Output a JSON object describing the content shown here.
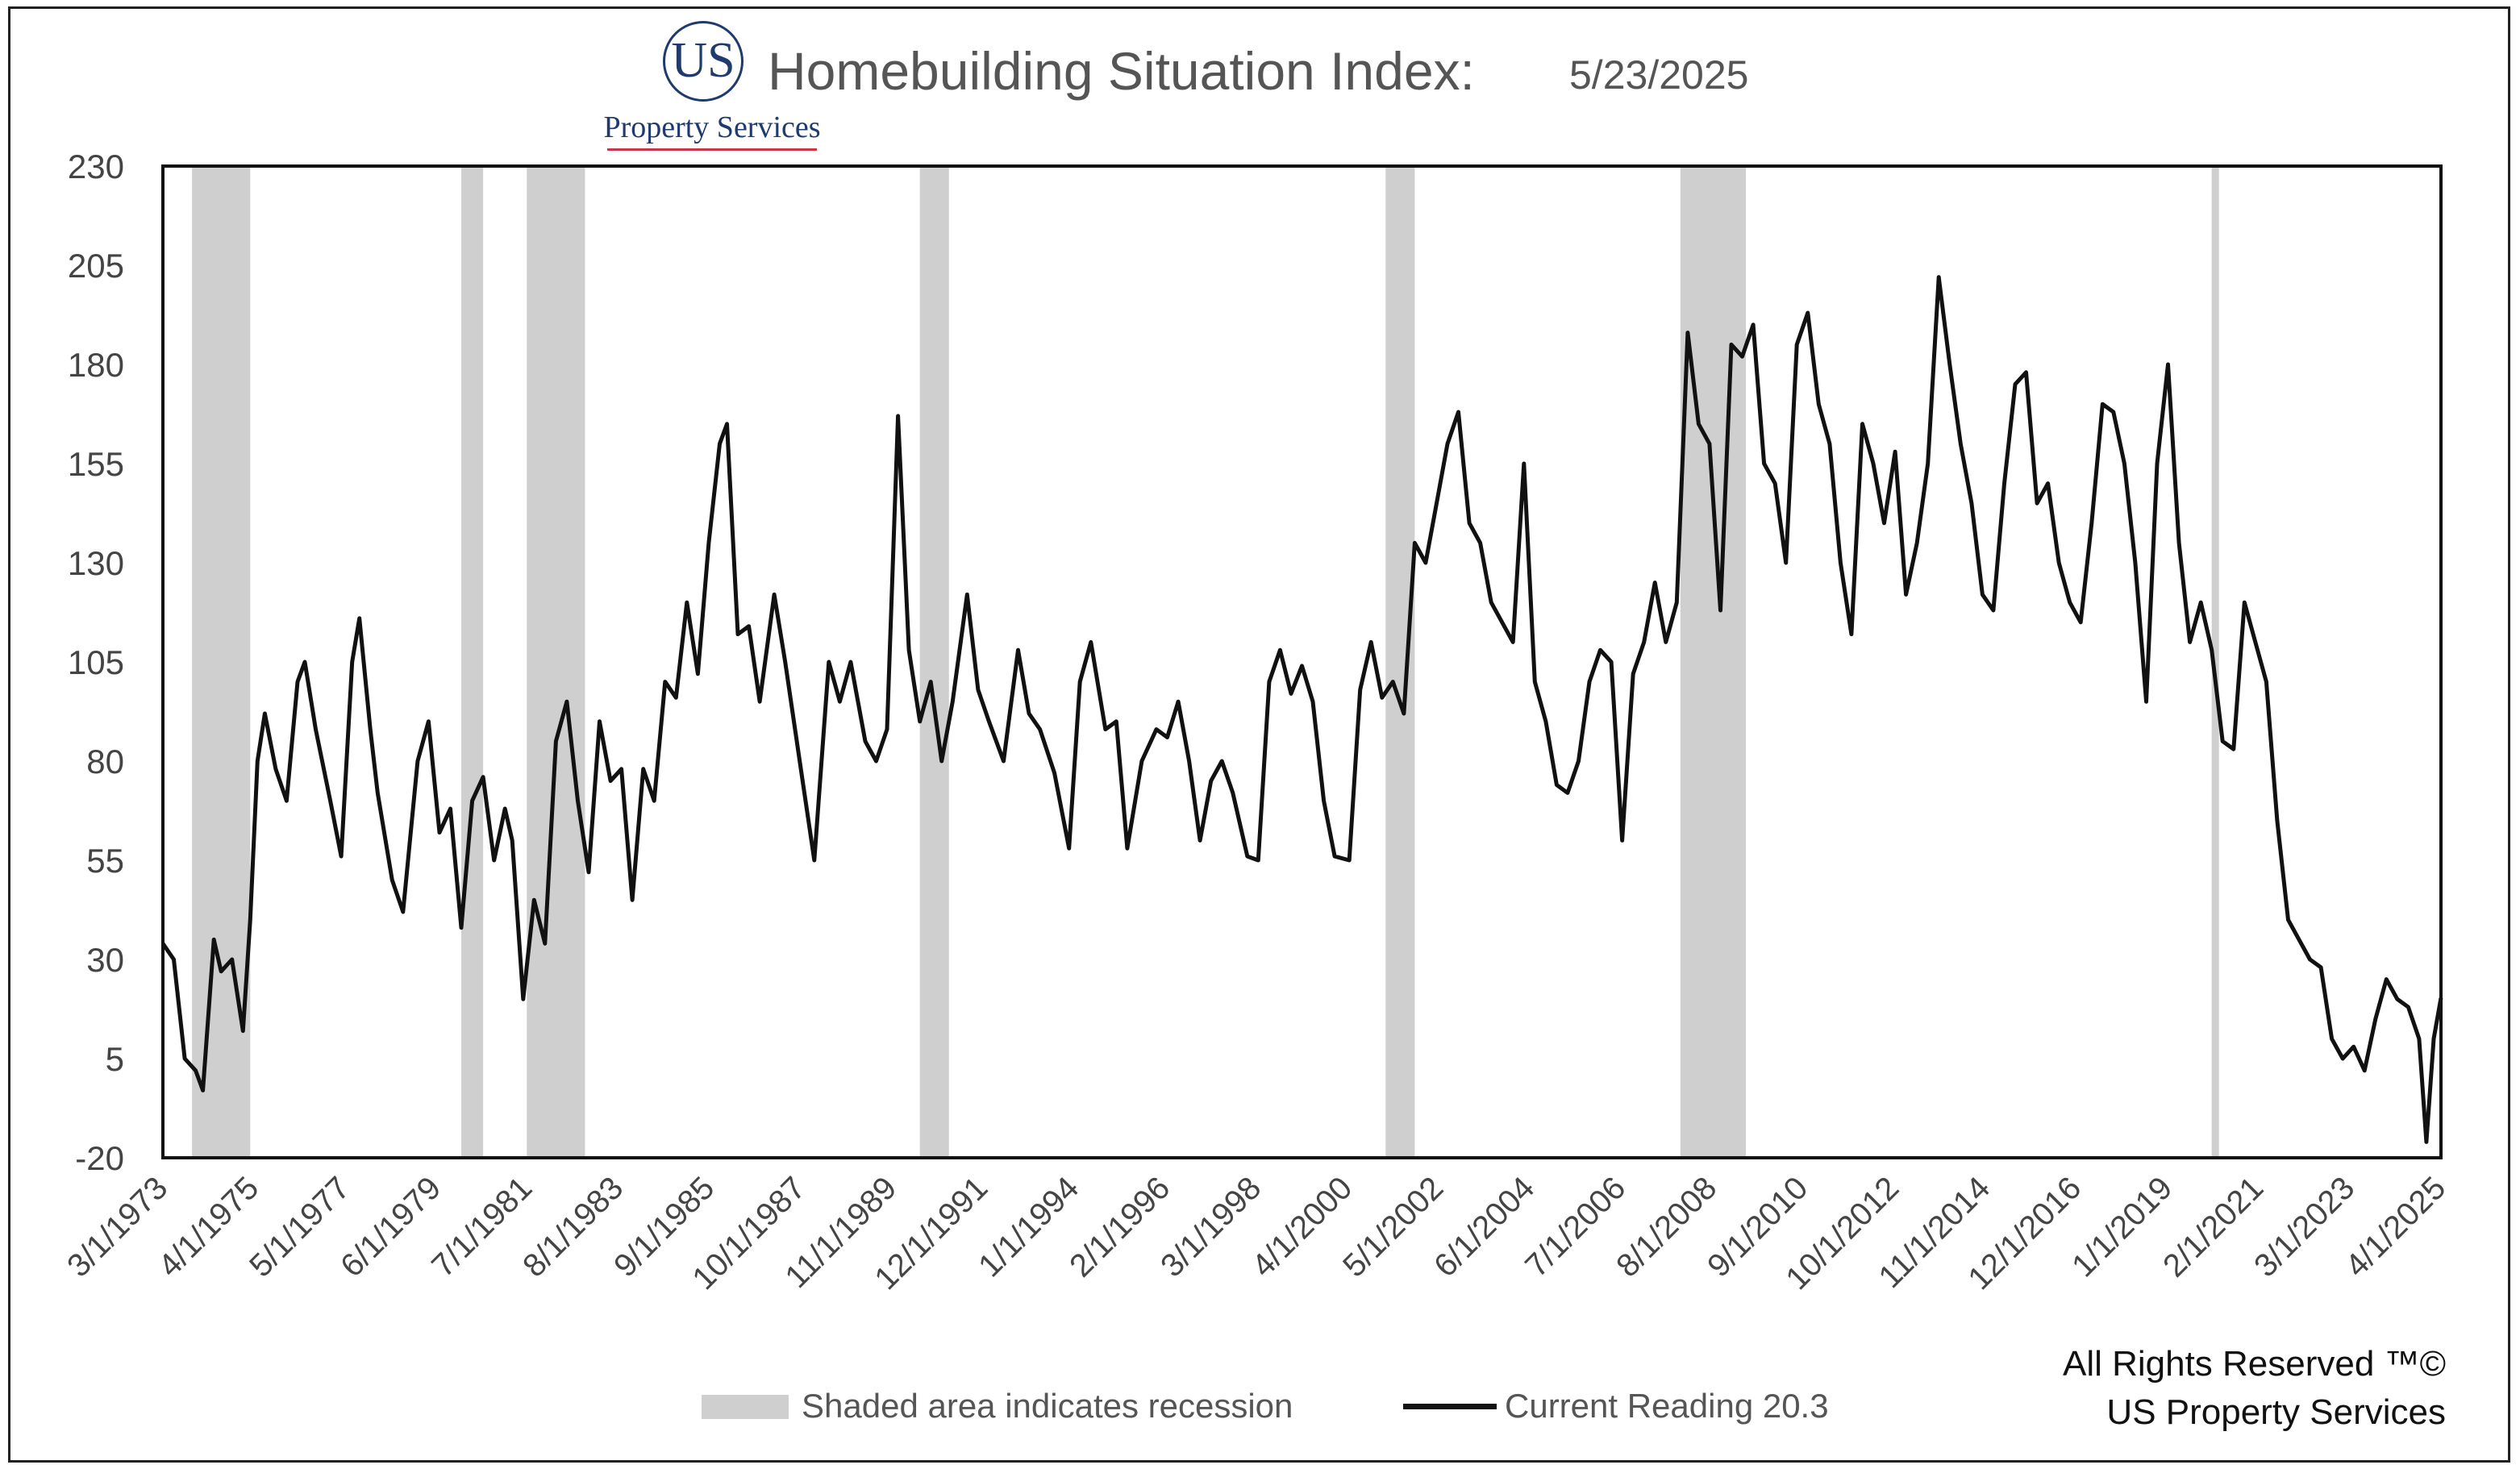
{
  "header": {
    "logo_text": "US",
    "logo_subtext": "Property Services",
    "title": "Homebuilding Situation Index:",
    "date": "5/23/2025"
  },
  "legend": {
    "recession_label": "Shaded area indicates recession",
    "current_label": "Current Reading 20.3"
  },
  "footer": {
    "rights_line1": "All Rights Reserved ™©",
    "rights_line2": "US Property Services"
  },
  "colors": {
    "line": "#111111",
    "recession": "#cfcfcf",
    "text": "#555555",
    "logo": "#1f3a6e"
  },
  "chart_data": {
    "type": "line",
    "title": "Homebuilding Situation Index:",
    "xlabel": "",
    "ylabel": "",
    "ylim": [
      -20,
      230
    ],
    "yticks": [
      230,
      205,
      180,
      155,
      130,
      105,
      80,
      55,
      30,
      5,
      -20
    ],
    "xlim": [
      "1973-03",
      "2025-05"
    ],
    "xtick_labels": [
      "3/1/1973",
      "4/1/1975",
      "5/1/1977",
      "6/1/1979",
      "7/1/1981",
      "8/1/1983",
      "9/1/1985",
      "10/1/1987",
      "11/1/1989",
      "12/1/1991",
      "1/1/1994",
      "2/1/1996",
      "3/1/1998",
      "4/1/2000",
      "5/1/2002",
      "6/1/2004",
      "7/1/2006",
      "8/1/2008",
      "9/1/2010",
      "10/1/2012",
      "11/1/2014",
      "12/1/2016",
      "1/1/2019",
      "2/1/2021",
      "3/1/2023",
      "4/1/2025"
    ],
    "grid": false,
    "legend_position": "bottom",
    "recessions": [
      [
        "1973-11",
        "1975-03"
      ],
      [
        "1980-01",
        "1980-07"
      ],
      [
        "1981-07",
        "1982-11"
      ],
      [
        "1990-07",
        "1991-03"
      ],
      [
        "2001-03",
        "2001-11"
      ],
      [
        "2007-12",
        "2009-06"
      ],
      [
        "2020-02",
        "2020-04"
      ]
    ],
    "series": [
      {
        "name": "Current Reading 20.3",
        "points": [
          [
            "1973-03",
            34
          ],
          [
            "1973-06",
            30
          ],
          [
            "1973-09",
            5
          ],
          [
            "1973-12",
            2
          ],
          [
            "1974-02",
            -3
          ],
          [
            "1974-05",
            35
          ],
          [
            "1974-07",
            27
          ],
          [
            "1974-10",
            30
          ],
          [
            "1975-01",
            12
          ],
          [
            "1975-03",
            40
          ],
          [
            "1975-05",
            80
          ],
          [
            "1975-07",
            92
          ],
          [
            "1975-10",
            78
          ],
          [
            "1976-01",
            70
          ],
          [
            "1976-04",
            100
          ],
          [
            "1976-06",
            105
          ],
          [
            "1976-09",
            88
          ],
          [
            "1977-01",
            70
          ],
          [
            "1977-04",
            56
          ],
          [
            "1977-07",
            105
          ],
          [
            "1977-09",
            116
          ],
          [
            "1977-12",
            88
          ],
          [
            "1978-02",
            72
          ],
          [
            "1978-06",
            50
          ],
          [
            "1978-09",
            42
          ],
          [
            "1979-01",
            80
          ],
          [
            "1979-04",
            90
          ],
          [
            "1979-07",
            62
          ],
          [
            "1979-10",
            68
          ],
          [
            "1980-01",
            38
          ],
          [
            "1980-04",
            70
          ],
          [
            "1980-07",
            76
          ],
          [
            "1980-10",
            55
          ],
          [
            "1981-01",
            68
          ],
          [
            "1981-03",
            60
          ],
          [
            "1981-06",
            20
          ],
          [
            "1981-09",
            45
          ],
          [
            "1981-12",
            34
          ],
          [
            "1982-03",
            85
          ],
          [
            "1982-06",
            95
          ],
          [
            "1982-09",
            70
          ],
          [
            "1982-12",
            52
          ],
          [
            "1983-03",
            90
          ],
          [
            "1983-06",
            75
          ],
          [
            "1983-09",
            78
          ],
          [
            "1983-12",
            45
          ],
          [
            "1984-03",
            78
          ],
          [
            "1984-06",
            70
          ],
          [
            "1984-09",
            100
          ],
          [
            "1984-12",
            96
          ],
          [
            "1985-03",
            120
          ],
          [
            "1985-06",
            102
          ],
          [
            "1985-09",
            135
          ],
          [
            "1985-12",
            160
          ],
          [
            "1986-02",
            165
          ],
          [
            "1986-05",
            112
          ],
          [
            "1986-08",
            114
          ],
          [
            "1986-11",
            95
          ],
          [
            "1987-03",
            122
          ],
          [
            "1987-06",
            105
          ],
          [
            "1987-10",
            80
          ],
          [
            "1988-02",
            55
          ],
          [
            "1988-06",
            105
          ],
          [
            "1988-09",
            95
          ],
          [
            "1988-12",
            105
          ],
          [
            "1989-04",
            85
          ],
          [
            "1989-07",
            80
          ],
          [
            "1989-10",
            88
          ],
          [
            "1990-01",
            167
          ],
          [
            "1990-04",
            108
          ],
          [
            "1990-07",
            90
          ],
          [
            "1990-10",
            100
          ],
          [
            "1991-01",
            80
          ],
          [
            "1991-04",
            95
          ],
          [
            "1991-08",
            122
          ],
          [
            "1991-11",
            98
          ],
          [
            "1992-02",
            90
          ],
          [
            "1992-06",
            80
          ],
          [
            "1992-10",
            108
          ],
          [
            "1993-01",
            92
          ],
          [
            "1993-04",
            88
          ],
          [
            "1993-08",
            77
          ],
          [
            "1993-12",
            58
          ],
          [
            "1994-03",
            100
          ],
          [
            "1994-06",
            110
          ],
          [
            "1994-10",
            88
          ],
          [
            "1995-01",
            90
          ],
          [
            "1995-04",
            58
          ],
          [
            "1995-08",
            80
          ],
          [
            "1995-12",
            88
          ],
          [
            "1996-03",
            86
          ],
          [
            "1996-06",
            95
          ],
          [
            "1996-09",
            80
          ],
          [
            "1996-12",
            60
          ],
          [
            "1997-03",
            75
          ],
          [
            "1997-06",
            80
          ],
          [
            "1997-09",
            72
          ],
          [
            "1998-01",
            56
          ],
          [
            "1998-04",
            55
          ],
          [
            "1998-07",
            100
          ],
          [
            "1998-10",
            108
          ],
          [
            "1999-01",
            97
          ],
          [
            "1999-04",
            104
          ],
          [
            "1999-07",
            95
          ],
          [
            "1999-10",
            70
          ],
          [
            "2000-01",
            56
          ],
          [
            "2000-05",
            55
          ],
          [
            "2000-08",
            98
          ],
          [
            "2000-11",
            110
          ],
          [
            "2001-02",
            96
          ],
          [
            "2001-05",
            100
          ],
          [
            "2001-08",
            92
          ],
          [
            "2001-11",
            135
          ],
          [
            "2002-02",
            130
          ],
          [
            "2002-05",
            145
          ],
          [
            "2002-08",
            160
          ],
          [
            "2002-11",
            168
          ],
          [
            "2003-02",
            140
          ],
          [
            "2003-05",
            135
          ],
          [
            "2003-08",
            120
          ],
          [
            "2003-11",
            115
          ],
          [
            "2004-02",
            110
          ],
          [
            "2004-05",
            155
          ],
          [
            "2004-08",
            100
          ],
          [
            "2004-11",
            90
          ],
          [
            "2005-02",
            74
          ],
          [
            "2005-05",
            72
          ],
          [
            "2005-08",
            80
          ],
          [
            "2005-11",
            100
          ],
          [
            "2006-02",
            108
          ],
          [
            "2006-05",
            105
          ],
          [
            "2006-08",
            60
          ],
          [
            "2006-11",
            102
          ],
          [
            "2007-02",
            110
          ],
          [
            "2007-05",
            125
          ],
          [
            "2007-08",
            110
          ],
          [
            "2007-11",
            120
          ],
          [
            "2008-02",
            188
          ],
          [
            "2008-05",
            165
          ],
          [
            "2008-08",
            160
          ],
          [
            "2008-11",
            118
          ],
          [
            "2009-02",
            185
          ],
          [
            "2009-05",
            182
          ],
          [
            "2009-08",
            190
          ],
          [
            "2009-11",
            155
          ],
          [
            "2010-02",
            150
          ],
          [
            "2010-05",
            130
          ],
          [
            "2010-08",
            185
          ],
          [
            "2010-11",
            193
          ],
          [
            "2011-02",
            170
          ],
          [
            "2011-05",
            160
          ],
          [
            "2011-08",
            130
          ],
          [
            "2011-11",
            112
          ],
          [
            "2012-02",
            165
          ],
          [
            "2012-05",
            155
          ],
          [
            "2012-08",
            140
          ],
          [
            "2012-11",
            158
          ],
          [
            "2013-02",
            122
          ],
          [
            "2013-05",
            135
          ],
          [
            "2013-08",
            155
          ],
          [
            "2013-11",
            202
          ],
          [
            "2014-02",
            180
          ],
          [
            "2014-05",
            160
          ],
          [
            "2014-08",
            145
          ],
          [
            "2014-11",
            122
          ],
          [
            "2015-02",
            118
          ],
          [
            "2015-05",
            150
          ],
          [
            "2015-08",
            175
          ],
          [
            "2015-11",
            178
          ],
          [
            "2016-02",
            145
          ],
          [
            "2016-05",
            150
          ],
          [
            "2016-08",
            130
          ],
          [
            "2016-11",
            120
          ],
          [
            "2017-02",
            115
          ],
          [
            "2017-05",
            140
          ],
          [
            "2017-08",
            170
          ],
          [
            "2017-11",
            168
          ],
          [
            "2018-02",
            155
          ],
          [
            "2018-05",
            130
          ],
          [
            "2018-08",
            95
          ],
          [
            "2018-11",
            155
          ],
          [
            "2019-02",
            180
          ],
          [
            "2019-05",
            135
          ],
          [
            "2019-08",
            110
          ],
          [
            "2019-11",
            120
          ],
          [
            "2020-02",
            108
          ],
          [
            "2020-05",
            85
          ],
          [
            "2020-08",
            83
          ],
          [
            "2020-11",
            120
          ],
          [
            "2021-02",
            110
          ],
          [
            "2021-05",
            100
          ],
          [
            "2021-08",
            65
          ],
          [
            "2021-11",
            40
          ],
          [
            "2022-02",
            35
          ],
          [
            "2022-05",
            30
          ],
          [
            "2022-08",
            28
          ],
          [
            "2022-11",
            10
          ],
          [
            "2023-02",
            5
          ],
          [
            "2023-05",
            8
          ],
          [
            "2023-08",
            2
          ],
          [
            "2023-11",
            15
          ],
          [
            "2024-02",
            25
          ],
          [
            "2024-05",
            20
          ],
          [
            "2024-08",
            18
          ],
          [
            "2024-11",
            10
          ],
          [
            "2025-01",
            -16
          ],
          [
            "2025-03",
            10
          ],
          [
            "2025-05",
            20.3
          ]
        ]
      }
    ]
  }
}
